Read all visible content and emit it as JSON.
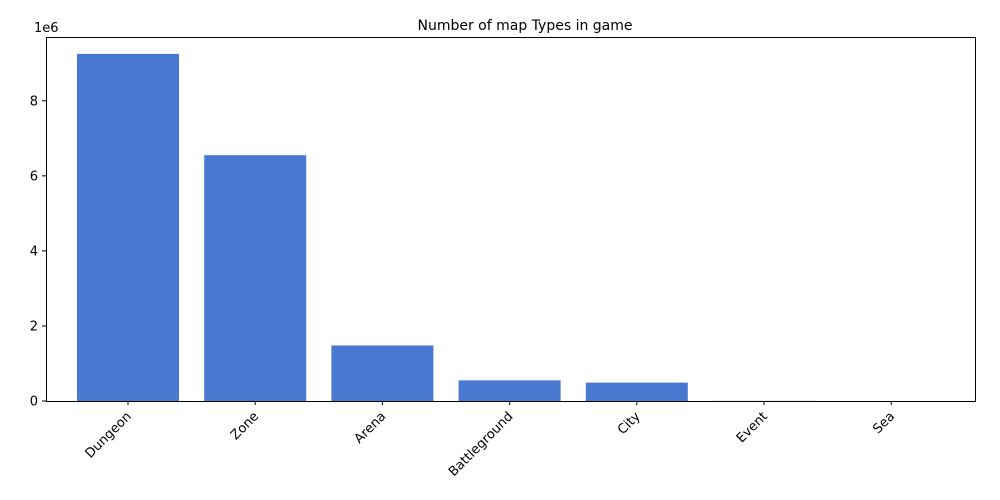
{
  "chart_data": {
    "type": "bar",
    "title": "Number of map Types in game",
    "xlabel": "",
    "ylabel": "",
    "categories": [
      "Dungeon",
      "Zone",
      "Arena",
      "Battleground",
      "City",
      "Event",
      "Sea"
    ],
    "values": [
      9250000,
      6550000,
      1480000,
      550000,
      490000,
      3000,
      1000
    ],
    "ylim": [
      0,
      9700000
    ],
    "yticks": [
      0,
      2,
      4,
      6,
      8
    ],
    "y_offset_label": "1e6",
    "grid": false,
    "bar_color": "#4878d0",
    "x_tick_rotation": "45"
  }
}
